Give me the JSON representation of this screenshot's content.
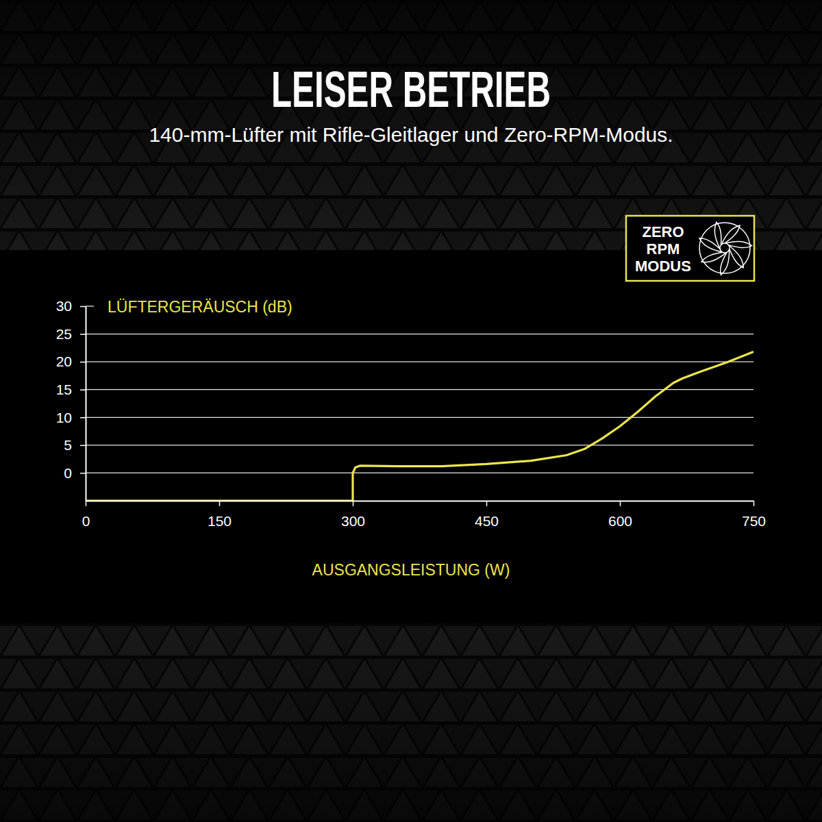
{
  "chart_data": {
    "type": "line",
    "title": "LEISER BETRIEB",
    "subtitle": "140-mm-Lüfter mit Rifle-Gleitlager und Zero-RPM-Modus.",
    "annotations": [
      "ZERO",
      "RPM",
      "MODUS"
    ],
    "ylabel": "LÜFTERGERÄUSCH (dB)",
    "xlabel": "AUSGANGSLEISTUNG (W)",
    "x": [
      0,
      300,
      300,
      303,
      308,
      350,
      400,
      450,
      500,
      540,
      560,
      580,
      600,
      620,
      640,
      660,
      670,
      690,
      720,
      750
    ],
    "values": [
      -5,
      -5,
      0,
      1.0,
      1.3,
      1.2,
      1.2,
      1.6,
      2.2,
      3.2,
      4.3,
      6.2,
      8.4,
      11,
      13.8,
      16.2,
      17,
      18.2,
      19.9,
      21.8
    ],
    "color": "#ebe64a",
    "xlim": [
      0,
      750
    ],
    "xticks": [
      0,
      150,
      300,
      450,
      600,
      750
    ],
    "ylim": [
      -5,
      30
    ],
    "yticks": [
      0,
      5,
      10,
      15,
      20,
      25,
      30
    ],
    "grid": true
  }
}
